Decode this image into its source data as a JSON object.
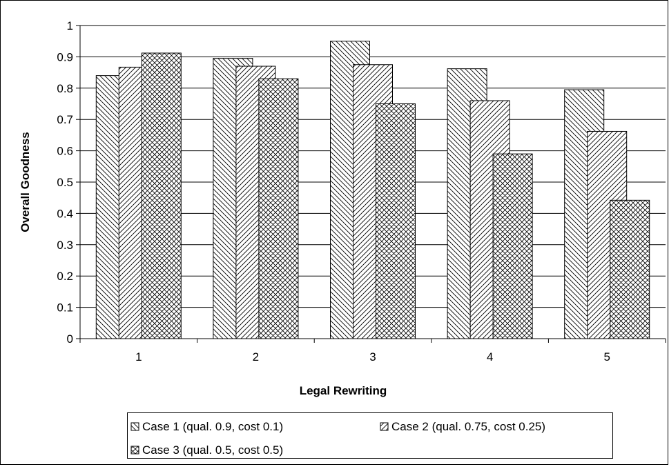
{
  "chart_data": {
    "type": "bar",
    "title": "",
    "xlabel": "Legal Rewriting",
    "ylabel": "Overall Goodness",
    "categories": [
      "1",
      "2",
      "3",
      "4",
      "5"
    ],
    "ylim": [
      0,
      1
    ],
    "yticks": [
      "0",
      "0.1",
      "0.2",
      "0.3",
      "0.4",
      "0.5",
      "0.6",
      "0.7",
      "0.8",
      "0.9",
      "1"
    ],
    "grid": true,
    "legend_position": "bottom",
    "series": [
      {
        "name": "Case 1 (qual. 0.9, cost 0.1)",
        "values": [
          0.84,
          0.895,
          0.95,
          0.862,
          0.795
        ],
        "pattern": "backslash-hatch"
      },
      {
        "name": "Case 2 (qual. 0.75, cost 0.25)",
        "values": [
          0.867,
          0.87,
          0.875,
          0.76,
          0.662
        ],
        "pattern": "slash-hatch"
      },
      {
        "name": "Case 3 (qual. 0.5, cost 0.5)",
        "values": [
          0.912,
          0.83,
          0.75,
          0.59,
          0.442
        ],
        "pattern": "cross-hatch"
      }
    ]
  }
}
